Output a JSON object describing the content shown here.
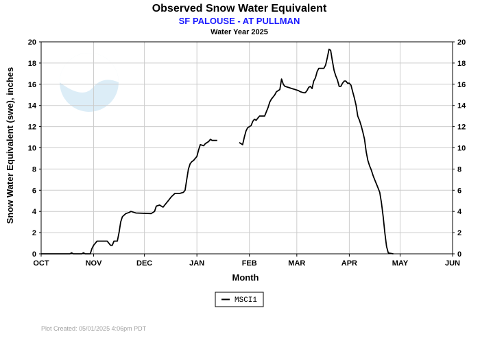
{
  "chart_data": {
    "type": "line",
    "title": "Observed Snow Water Equivalent",
    "subtitle": "SF PALOUSE - AT PULLMAN",
    "subsubtitle": "Water Year 2025",
    "xlabel": "Month",
    "ylabel": "Snow Water Equivalent (swe),  inches",
    "xlim": [
      0,
      243
    ],
    "ylim": [
      0,
      20
    ],
    "yticks": [
      0,
      2,
      4,
      6,
      8,
      10,
      12,
      14,
      16,
      18,
      20
    ],
    "month_ticks": [
      {
        "label": "OCT",
        "day": 0
      },
      {
        "label": "NOV",
        "day": 31
      },
      {
        "label": "DEC",
        "day": 61
      },
      {
        "label": "JAN",
        "day": 92
      },
      {
        "label": "FEB",
        "day": 123
      },
      {
        "label": "MAR",
        "day": 151
      },
      {
        "label": "APR",
        "day": 182
      },
      {
        "label": "MAY",
        "day": 212
      },
      {
        "label": "JUN",
        "day": 243
      }
    ],
    "grid": true,
    "legend_position": "bottom-center",
    "series": [
      {
        "name": "MSCI1",
        "color": "#000000",
        "segments": [
          [
            [
              0,
              0
            ],
            [
              17,
              0
            ],
            [
              18,
              0.1
            ],
            [
              19,
              0
            ],
            [
              24,
              0
            ],
            [
              25,
              0.1
            ],
            [
              26,
              0
            ],
            [
              29,
              0
            ],
            [
              30,
              0.5
            ],
            [
              31,
              0.8
            ],
            [
              32,
              1.0
            ],
            [
              33,
              1.2
            ],
            [
              36,
              1.2
            ],
            [
              39,
              1.2
            ],
            [
              40,
              1.0
            ],
            [
              41,
              0.8
            ],
            [
              42,
              0.8
            ],
            [
              43,
              1.2
            ],
            [
              45,
              1.2
            ],
            [
              46,
              2.0
            ],
            [
              47,
              3.0
            ],
            [
              48,
              3.5
            ],
            [
              50,
              3.8
            ],
            [
              52,
              3.9
            ],
            [
              53,
              4.0
            ],
            [
              55,
              3.9
            ],
            [
              56,
              3.85
            ],
            [
              65,
              3.8
            ],
            [
              66,
              3.9
            ],
            [
              67,
              4.0
            ],
            [
              68,
              4.5
            ],
            [
              70,
              4.6
            ],
            [
              71,
              4.5
            ],
            [
              72,
              4.4
            ],
            [
              73,
              4.6
            ],
            [
              75,
              5.0
            ],
            [
              77,
              5.4
            ],
            [
              79,
              5.7
            ],
            [
              82,
              5.7
            ],
            [
              84,
              5.8
            ],
            [
              85,
              6.0
            ],
            [
              86,
              7.0
            ],
            [
              87,
              8.0
            ],
            [
              88,
              8.5
            ],
            [
              89,
              8.7
            ],
            [
              90,
              8.8
            ],
            [
              91,
              9.0
            ],
            [
              92,
              9.2
            ],
            [
              93,
              9.8
            ],
            [
              94,
              10.3
            ],
            [
              96,
              10.2
            ],
            [
              97,
              10.4
            ],
            [
              98,
              10.5
            ],
            [
              99,
              10.6
            ],
            [
              100,
              10.8
            ],
            [
              101,
              10.7
            ],
            [
              103,
              10.7
            ],
            [
              104,
              10.7
            ]
          ],
          [
            [
              117,
              10.5
            ],
            [
              119,
              10.3
            ],
            [
              120,
              11.0
            ],
            [
              121,
              11.6
            ],
            [
              122,
              11.9
            ],
            [
              123,
              12.0
            ],
            [
              124,
              12.1
            ],
            [
              125,
              12.5
            ],
            [
              126,
              12.7
            ],
            [
              127,
              12.6
            ],
            [
              128,
              12.8
            ],
            [
              129,
              13.0
            ],
            [
              132,
              13.0
            ],
            [
              133,
              13.4
            ],
            [
              134,
              13.8
            ],
            [
              135,
              14.3
            ],
            [
              136,
              14.6
            ],
            [
              137,
              14.8
            ],
            [
              138,
              15.0
            ],
            [
              139,
              15.3
            ],
            [
              140,
              15.4
            ],
            [
              141,
              15.5
            ],
            [
              142,
              16.5
            ],
            [
              143,
              16.0
            ],
            [
              144,
              15.8
            ],
            [
              146,
              15.7
            ],
            [
              148,
              15.6
            ],
            [
              150,
              15.5
            ],
            [
              152,
              15.4
            ],
            [
              153,
              15.3
            ],
            [
              155,
              15.2
            ],
            [
              156,
              15.2
            ],
            [
              157,
              15.4
            ],
            [
              158,
              15.7
            ],
            [
              159,
              15.8
            ],
            [
              160,
              15.6
            ],
            [
              161,
              16.3
            ],
            [
              162,
              16.6
            ],
            [
              163,
              17.2
            ],
            [
              164,
              17.5
            ],
            [
              167,
              17.5
            ],
            [
              168,
              17.8
            ],
            [
              169,
              18.5
            ],
            [
              170,
              19.3
            ],
            [
              171,
              19.2
            ],
            [
              172,
              18.2
            ],
            [
              173,
              17.3
            ],
            [
              174,
              16.8
            ],
            [
              175,
              16.4
            ],
            [
              176,
              15.8
            ],
            [
              177,
              15.8
            ],
            [
              178,
              16.1
            ],
            [
              179,
              16.3
            ],
            [
              180,
              16.3
            ],
            [
              181,
              16.1
            ],
            [
              182,
              16.1
            ],
            [
              183,
              15.9
            ],
            [
              184,
              15.3
            ],
            [
              185,
              14.7
            ],
            [
              186,
              14.0
            ],
            [
              187,
              13.0
            ],
            [
              188,
              12.6
            ],
            [
              189,
              12.1
            ],
            [
              190,
              11.5
            ],
            [
              191,
              10.8
            ],
            [
              192,
              9.6
            ],
            [
              193,
              8.8
            ],
            [
              194,
              8.3
            ],
            [
              195,
              7.9
            ],
            [
              196,
              7.4
            ],
            [
              197,
              7.0
            ],
            [
              198,
              6.6
            ],
            [
              199,
              6.2
            ],
            [
              200,
              5.8
            ],
            [
              201,
              4.8
            ],
            [
              202,
              3.5
            ],
            [
              203,
              2.0
            ],
            [
              204,
              0.7
            ],
            [
              205,
              0.1
            ],
            [
              206,
              0.05
            ],
            [
              208,
              0
            ]
          ]
        ]
      }
    ]
  },
  "footer": "Plot Created: 05/01/2025 4:06pm PDT"
}
